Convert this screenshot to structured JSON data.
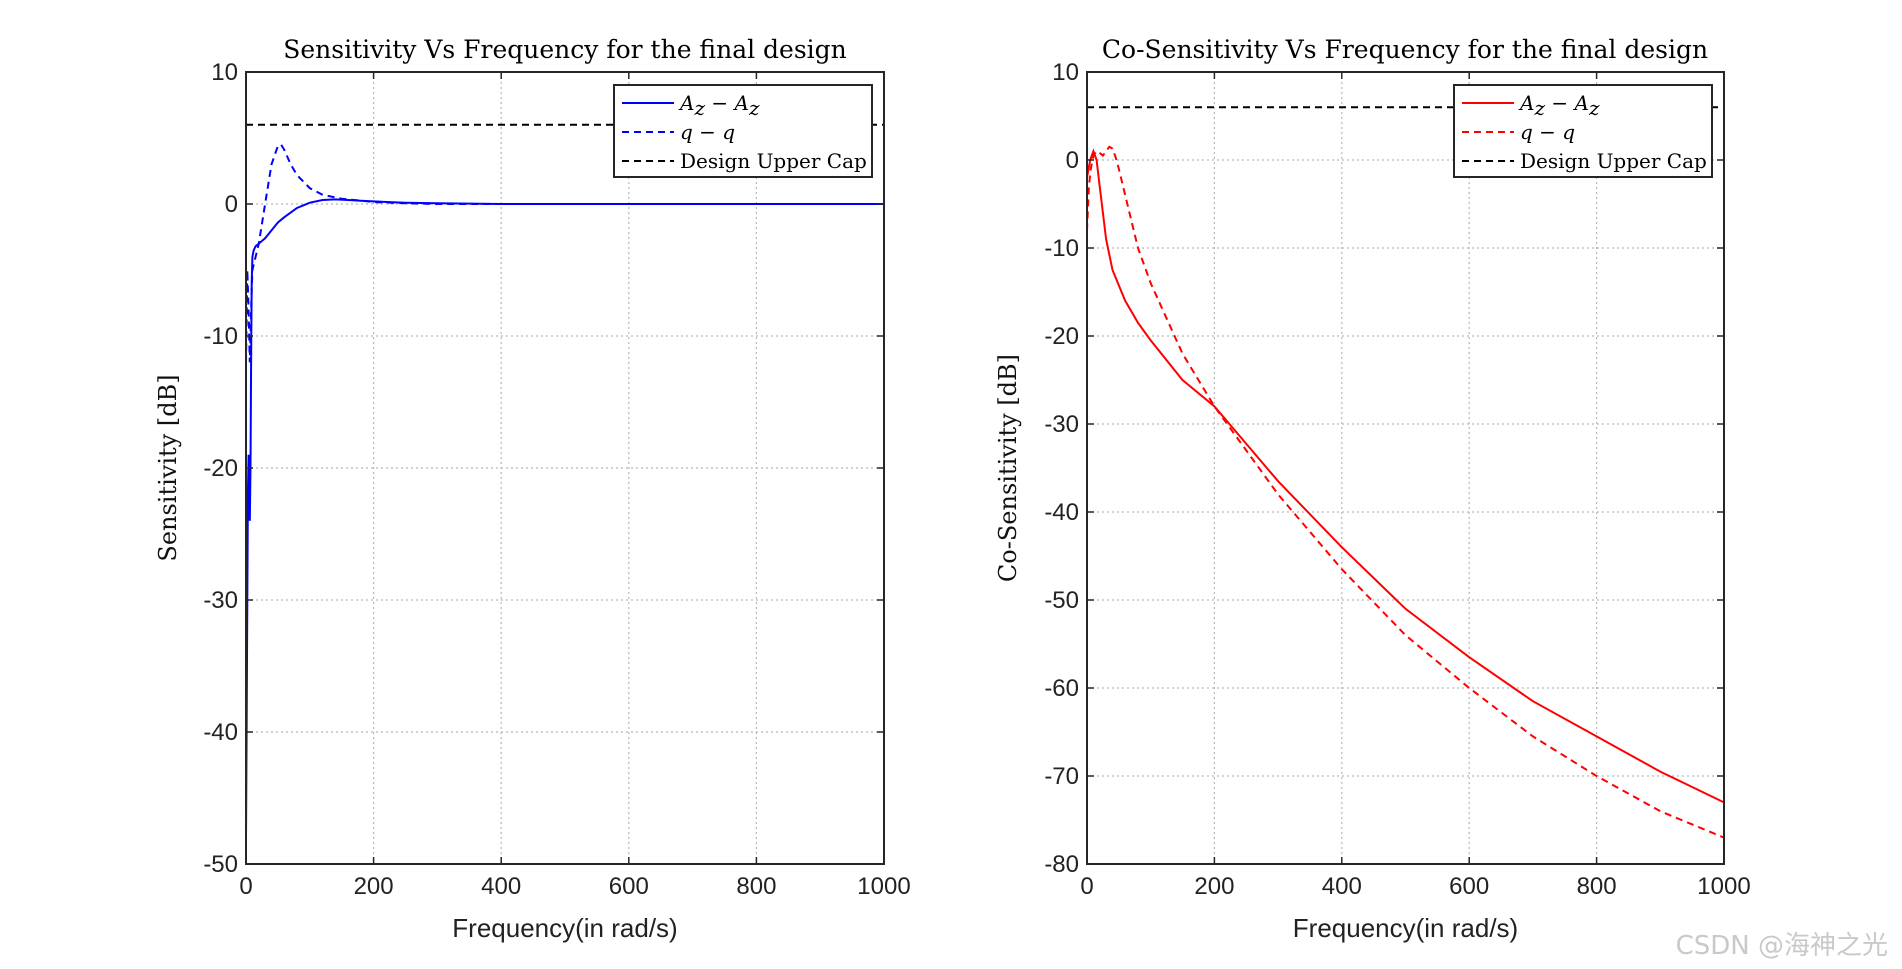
{
  "chart_data": [
    {
      "type": "line",
      "title": "Sensitivity Vs Frequency for the final design",
      "xlabel": "Frequency(in rad/s)",
      "ylabel": "Sensitivity [dB]",
      "xlim": [
        0,
        1000
      ],
      "ylim": [
        -50,
        10
      ],
      "xticks": [
        0,
        200,
        400,
        600,
        800,
        1000
      ],
      "yticks": [
        10,
        0,
        -10,
        -20,
        -30,
        -40,
        -50
      ],
      "grid": true,
      "legend_position": "top-right",
      "series": [
        {
          "name": "Az - Az",
          "legend_main": "A",
          "legend_sub": "z",
          "color": "#0000ff",
          "style": "solid",
          "x": [
            0,
            1,
            2,
            3,
            4,
            5,
            6,
            7,
            8,
            9,
            10,
            12,
            15,
            20,
            25,
            30,
            40,
            50,
            60,
            80,
            100,
            120,
            140,
            160,
            180,
            200,
            250,
            300,
            400,
            500,
            700,
            1000
          ],
          "y": [
            -48,
            -40,
            -30,
            -22,
            -19,
            -20,
            -24,
            -20,
            -12,
            -6,
            -4,
            -3.5,
            -3.2,
            -3,
            -2.8,
            -2.6,
            -2.0,
            -1.4,
            -1.0,
            -0.3,
            0.1,
            0.3,
            0.35,
            0.3,
            0.25,
            0.2,
            0.1,
            0.05,
            0,
            0,
            0,
            0
          ]
        },
        {
          "name": "q - q",
          "legend_main": "q",
          "legend_sub": "",
          "color": "#0000ff",
          "style": "dashed",
          "x": [
            0,
            2,
            4,
            6,
            8,
            10,
            15,
            20,
            30,
            40,
            50,
            55,
            60,
            70,
            80,
            100,
            120,
            150,
            200,
            250,
            300,
            400,
            500,
            1000
          ],
          "y": [
            -12,
            -5,
            -8,
            -12,
            -8,
            -5,
            -4,
            -3,
            0,
            3,
            4.4,
            4.5,
            4.1,
            3.0,
            2.2,
            1.2,
            0.7,
            0.4,
            0.15,
            0.05,
            0,
            0,
            0,
            0
          ]
        },
        {
          "name": "Design Upper Cap",
          "legend_main": "Design Upper Cap",
          "legend_sub": "",
          "color": "#000000",
          "style": "dashed",
          "x": [
            0,
            1000
          ],
          "y": [
            6,
            6
          ]
        }
      ]
    },
    {
      "type": "line",
      "title": "Co-Sensitivity Vs Frequency for the final design",
      "xlabel": "Frequency(in rad/s)",
      "ylabel": "Co-Sensitivity [dB]",
      "xlim": [
        0,
        1000
      ],
      "ylim": [
        -80,
        10
      ],
      "xticks": [
        0,
        200,
        400,
        600,
        800,
        1000
      ],
      "yticks": [
        10,
        0,
        -10,
        -20,
        -30,
        -40,
        -50,
        -60,
        -70,
        -80
      ],
      "grid": true,
      "legend_position": "top-right",
      "series": [
        {
          "name": "Az - Az",
          "legend_main": "A",
          "legend_sub": "z",
          "color": "#ff0000",
          "style": "solid",
          "x": [
            0,
            5,
            10,
            15,
            20,
            30,
            40,
            60,
            80,
            100,
            150,
            200,
            300,
            400,
            500,
            600,
            700,
            800,
            900,
            1000
          ],
          "y": [
            -2,
            0,
            1,
            0,
            -3,
            -9,
            -12.5,
            -16,
            -18.5,
            -20.5,
            -25,
            -28,
            -36.5,
            -44,
            -51,
            -56.5,
            -61.5,
            -65.5,
            -69.5,
            -73
          ]
        },
        {
          "name": "q - q",
          "legend_main": "q",
          "legend_sub": "",
          "color": "#ff0000",
          "style": "dashed",
          "x": [
            0,
            3,
            6,
            10,
            15,
            20,
            25,
            30,
            35,
            40,
            45,
            50,
            60,
            70,
            80,
            100,
            150,
            200,
            300,
            400,
            500,
            600,
            700,
            800,
            900,
            1000
          ],
          "y": [
            -8,
            -3,
            -1,
            0.5,
            1,
            0.8,
            0.5,
            1,
            1.5,
            1.3,
            0.3,
            -1,
            -4,
            -7,
            -10,
            -14,
            -22,
            -28,
            -38,
            -46.5,
            -54,
            -60,
            -65.5,
            -70,
            -74,
            -77
          ]
        },
        {
          "name": "Design Upper Cap",
          "legend_main": "Design Upper Cap",
          "legend_sub": "",
          "color": "#000000",
          "style": "dashed",
          "x": [
            0,
            1000
          ],
          "y": [
            6,
            6
          ]
        }
      ]
    }
  ],
  "watermark": "CSDN @海神之光"
}
